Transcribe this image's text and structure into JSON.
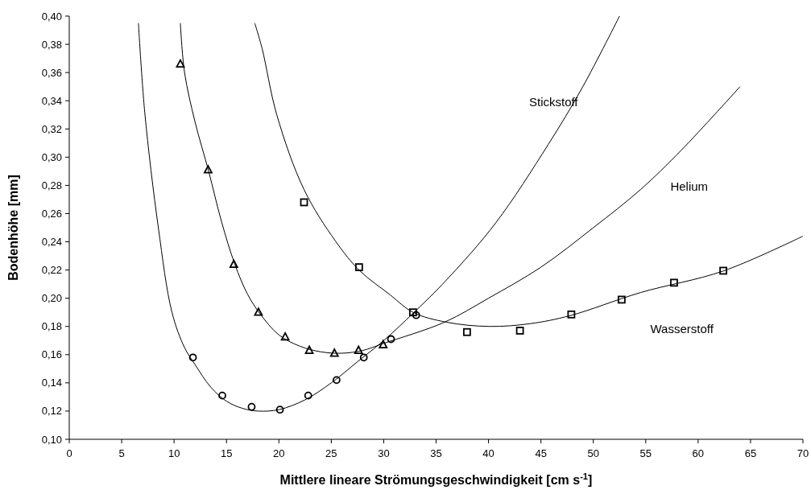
{
  "chart_data": {
    "type": "scatter",
    "xlabel": "Mittlere lineare Strömungsgeschwindigkeit [cm s$^{-1}$]",
    "ylabel": "Bodenhöhe [mm]",
    "xlim": [
      0,
      70
    ],
    "ylim": [
      0.1,
      0.4
    ],
    "xticks": [
      0,
      5,
      10,
      15,
      20,
      25,
      30,
      35,
      40,
      45,
      50,
      55,
      60,
      65,
      70
    ],
    "yticks": [
      {
        "value": 0.1,
        "label": "0,10"
      },
      {
        "value": 0.12,
        "label": "0,12"
      },
      {
        "value": 0.14,
        "label": "0,14"
      },
      {
        "value": 0.16,
        "label": "0,16"
      },
      {
        "value": 0.18,
        "label": "0,18"
      },
      {
        "value": 0.2,
        "label": "0,20"
      },
      {
        "value": 0.22,
        "label": "0,22"
      },
      {
        "value": 0.24,
        "label": "0,24"
      },
      {
        "value": 0.26,
        "label": "0,26"
      },
      {
        "value": 0.28,
        "label": "0,28"
      },
      {
        "value": 0.3,
        "label": "0,30"
      },
      {
        "value": 0.32,
        "label": "0,32"
      },
      {
        "value": 0.34,
        "label": "0,34"
      },
      {
        "value": 0.36,
        "label": "0,36"
      },
      {
        "value": 0.38,
        "label": "0,38"
      },
      {
        "value": 0.4,
        "label": "0,40"
      }
    ],
    "grid": false,
    "series": [
      {
        "type": "scatter",
        "marker": "circle",
        "color": "#000000",
        "x": [
          11.8,
          14.6,
          17.4,
          20.1,
          22.8,
          25.5,
          28.1,
          30.7,
          33.1
        ],
        "values": [
          0.158,
          0.131,
          0.123,
          0.121,
          0.131,
          0.142,
          0.158,
          0.171,
          0.188
        ]
      },
      {
        "type": "scatter",
        "marker": "triangle",
        "color": "#000000",
        "x": [
          10.6,
          13.25,
          15.7,
          18.05,
          20.6,
          22.9,
          25.3,
          27.6,
          29.95
        ],
        "values": [
          0.366,
          0.291,
          0.224,
          0.19,
          0.1725,
          0.163,
          0.161,
          0.163,
          0.167
        ]
      },
      {
        "type": "scatter",
        "marker": "square",
        "color": "#000000",
        "x": [
          22.4,
          27.65,
          32.8,
          37.95,
          43.0,
          47.9,
          52.7,
          57.7,
          62.4
        ],
        "values": [
          0.268,
          0.222,
          0.19,
          0.176,
          0.177,
          0.1885,
          0.199,
          0.211,
          0.2195
        ]
      },
      {
        "type": "line",
        "marker": "none",
        "color": "#000000",
        "x": [
          6.6,
          7.2,
          8.5,
          9.8,
          11,
          12,
          13.5,
          15,
          16.5,
          18,
          20,
          22.5,
          25,
          27.5,
          30,
          32.9,
          36,
          40.7,
          45.7,
          49,
          52.5
        ],
        "values": [
          0.395,
          0.332,
          0.25,
          0.19,
          0.165,
          0.153,
          0.137,
          0.127,
          0.122,
          0.12,
          0.121,
          0.128,
          0.14,
          0.155,
          0.17,
          0.19,
          0.213,
          0.2535,
          0.309,
          0.35,
          0.4
        ]
      },
      {
        "type": "line",
        "marker": "none",
        "color": "#000000",
        "x": [
          10.6,
          11,
          12,
          13.3,
          14.5,
          15.8,
          17,
          18.2,
          20,
          22,
          24,
          26,
          28,
          30,
          35.8,
          40,
          45,
          50,
          54.5,
          58.4,
          64
        ],
        "values": [
          0.395,
          0.36,
          0.325,
          0.29,
          0.255,
          0.224,
          0.203,
          0.189,
          0.174,
          0.166,
          0.162,
          0.161,
          0.163,
          0.168,
          0.183,
          0.2,
          0.222,
          0.25,
          0.277,
          0.305,
          0.35
        ]
      },
      {
        "type": "line",
        "marker": "none",
        "color": "#000000",
        "x": [
          17.7,
          18.4,
          19.8,
          22.4,
          25.4,
          27.7,
          30.6,
          32.8,
          36,
          40.1,
          44,
          47.8,
          54.5,
          62.4,
          70
        ],
        "values": [
          0.395,
          0.377,
          0.33,
          0.277,
          0.2405,
          0.2196,
          0.2025,
          0.19,
          0.183,
          0.18,
          0.182,
          0.1877,
          0.204,
          0.2193,
          0.244
        ]
      }
    ],
    "annotations": [
      "Stickstoff",
      "Helium",
      "Wasserstoff"
    ]
  }
}
